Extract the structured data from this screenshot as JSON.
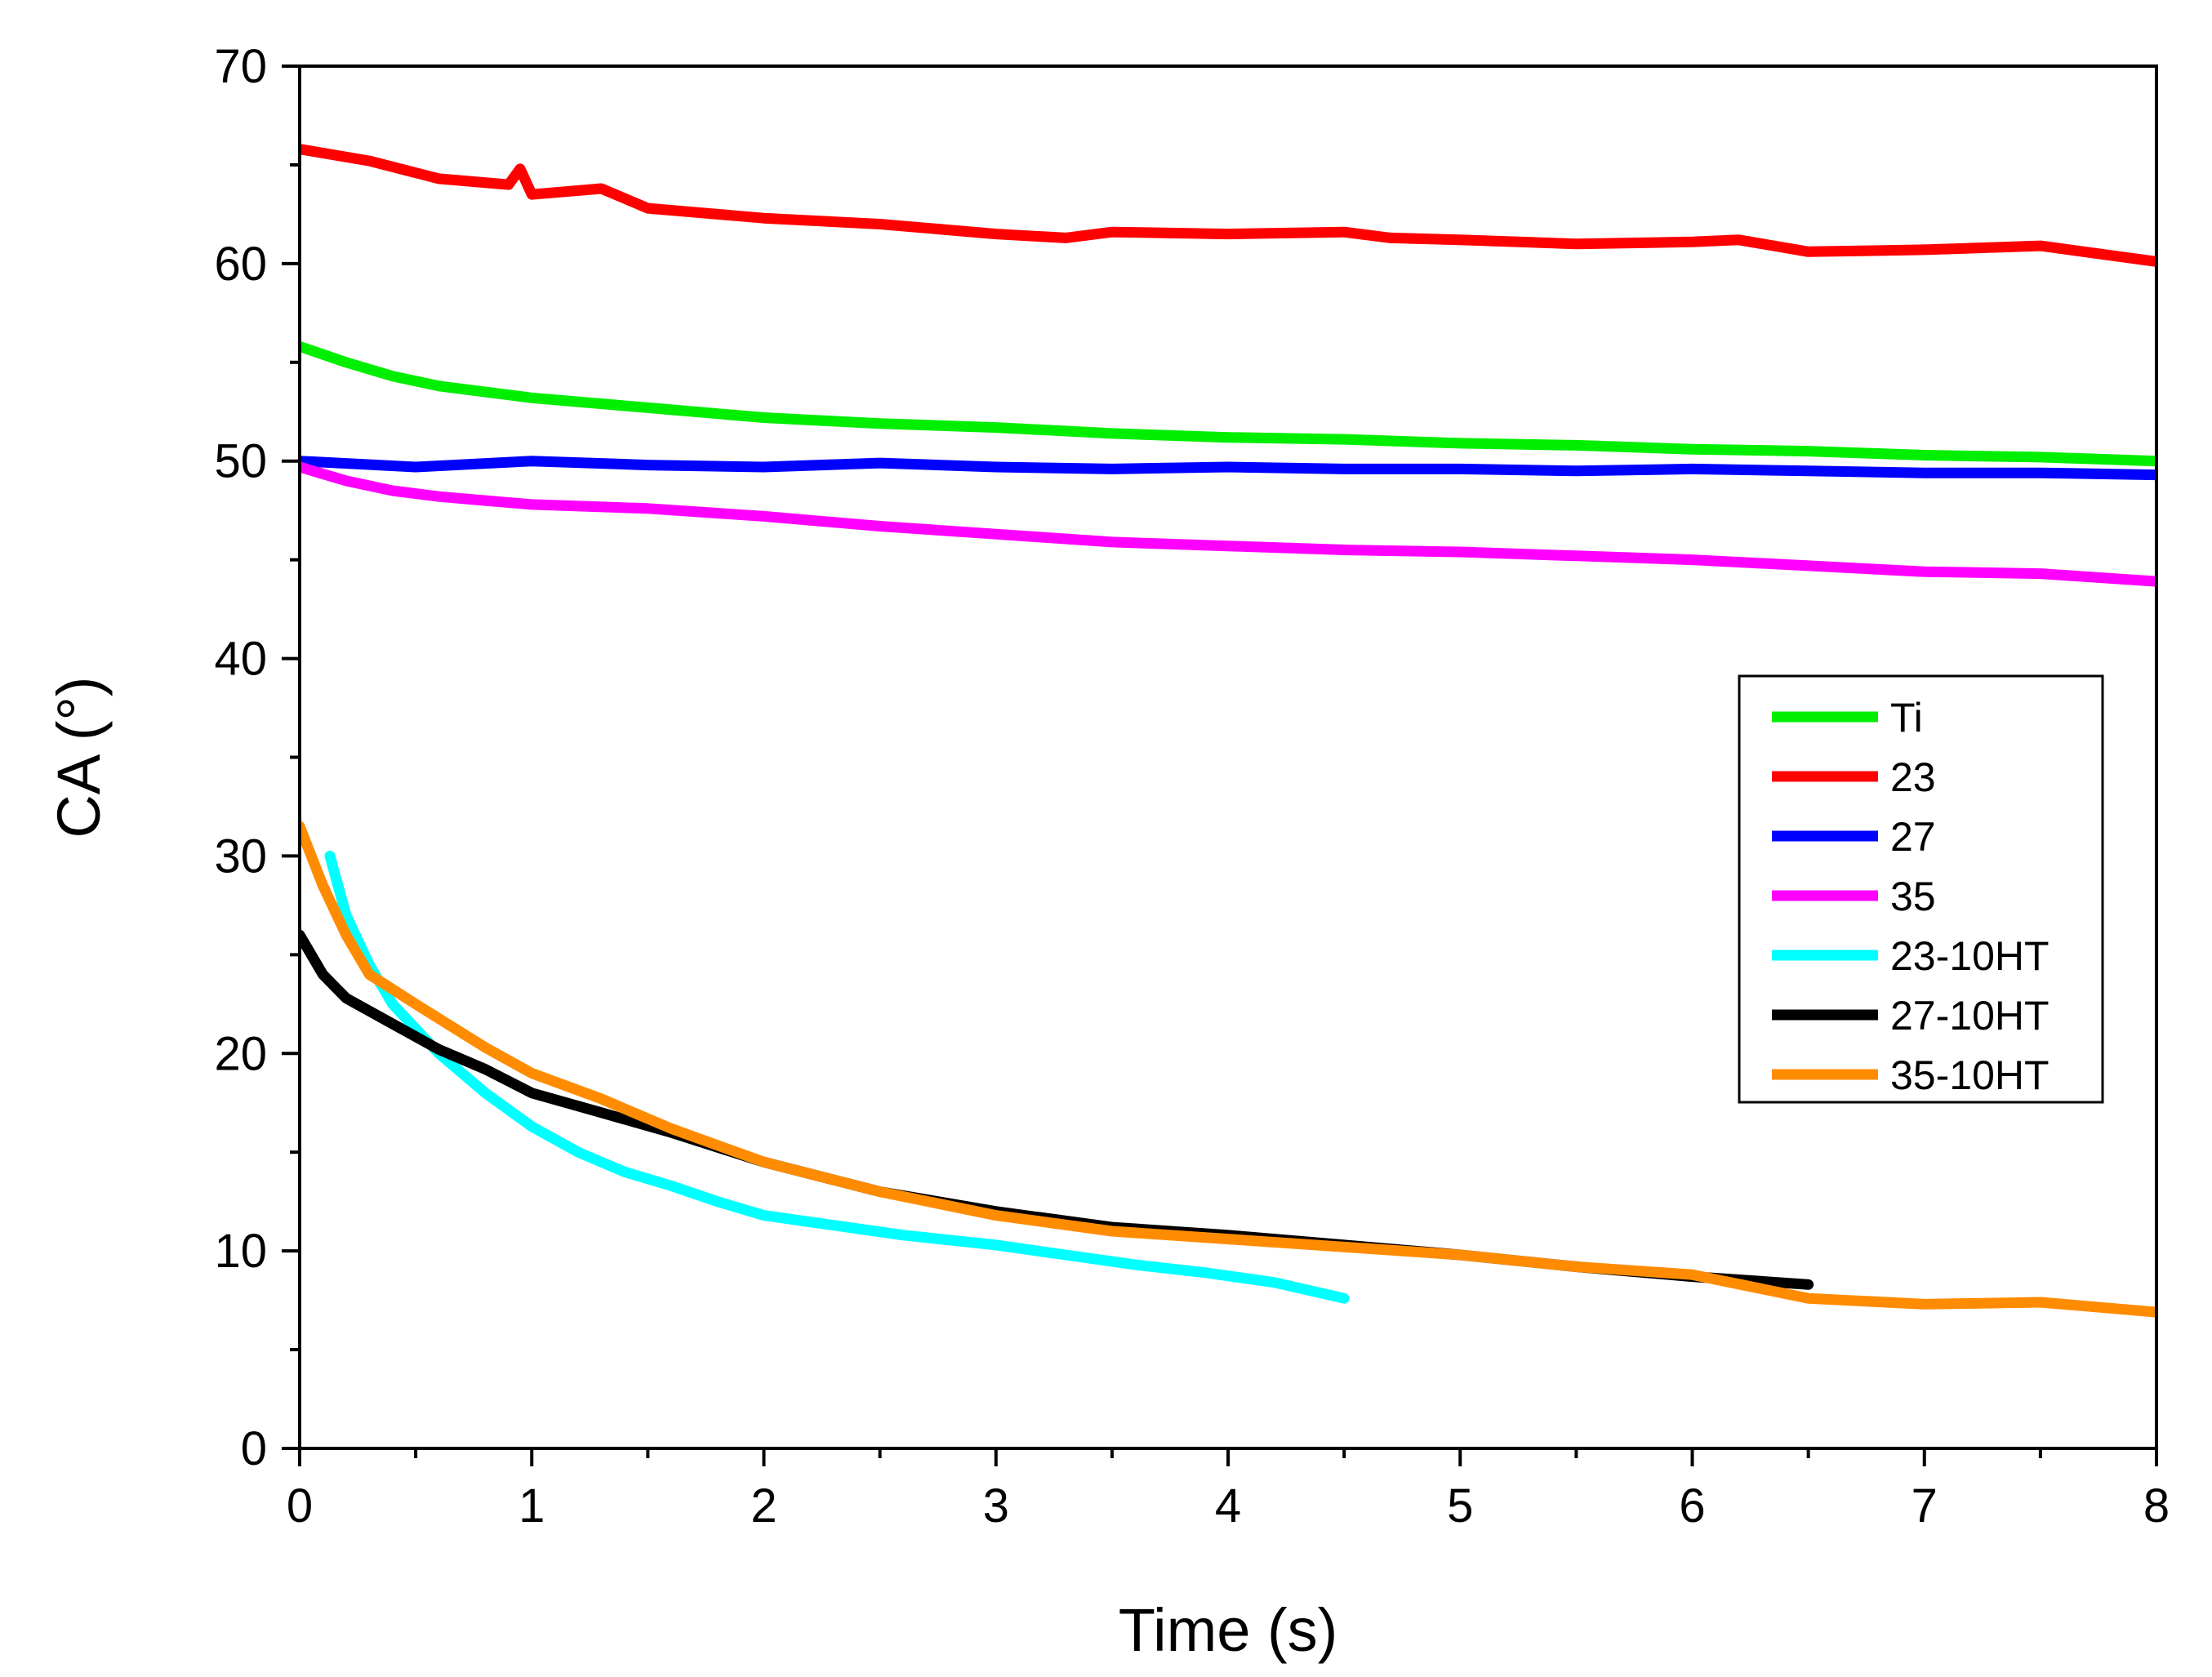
{
  "chart_data": {
    "type": "line",
    "title": "",
    "xlabel": "Time (s)",
    "ylabel": "CA (°)",
    "xlim": [
      0,
      8
    ],
    "ylim": [
      0,
      70
    ],
    "xticks": [
      0,
      1,
      2,
      3,
      4,
      5,
      6,
      7,
      8
    ],
    "yticks": [
      0,
      10,
      20,
      30,
      40,
      50,
      60,
      70
    ],
    "grid": false,
    "legend_position": "right-middle",
    "series": [
      {
        "name": "Ti",
        "color": "#00ee00",
        "x": [
          0,
          0.2,
          0.4,
          0.6,
          0.8,
          1.0,
          1.5,
          2.0,
          2.5,
          3.0,
          3.5,
          4.0,
          4.5,
          5.0,
          5.5,
          6.0,
          6.5,
          7.0,
          7.5,
          8.0
        ],
        "y": [
          55.8,
          55.0,
          54.3,
          53.8,
          53.5,
          53.2,
          52.7,
          52.2,
          51.9,
          51.7,
          51.4,
          51.2,
          51.1,
          50.9,
          50.8,
          50.6,
          50.5,
          50.3,
          50.2,
          50.0
        ]
      },
      {
        "name": "23",
        "color": "#ff0000",
        "x": [
          0,
          0.3,
          0.6,
          0.9,
          0.95,
          1.0,
          1.3,
          1.5,
          2.0,
          2.5,
          3.0,
          3.3,
          3.5,
          4.0,
          4.5,
          4.7,
          5.0,
          5.5,
          6.0,
          6.2,
          6.5,
          7.0,
          7.5,
          8.0
        ],
        "y": [
          65.8,
          65.2,
          64.3,
          64.0,
          64.8,
          63.5,
          63.8,
          62.8,
          62.3,
          62.0,
          61.5,
          61.3,
          61.6,
          61.5,
          61.6,
          61.3,
          61.2,
          61.0,
          61.1,
          61.2,
          60.6,
          60.7,
          60.9,
          60.1
        ]
      },
      {
        "name": "27",
        "color": "#0000ff",
        "x": [
          0,
          0.5,
          1.0,
          1.5,
          2.0,
          2.5,
          3.0,
          3.5,
          4.0,
          4.5,
          5.0,
          5.5,
          6.0,
          6.5,
          7.0,
          7.5,
          8.0
        ],
        "y": [
          50.0,
          49.7,
          50.0,
          49.8,
          49.7,
          49.9,
          49.7,
          49.6,
          49.7,
          49.6,
          49.6,
          49.5,
          49.6,
          49.5,
          49.4,
          49.4,
          49.3
        ]
      },
      {
        "name": "35",
        "color": "#ff00ff",
        "x": [
          0,
          0.2,
          0.4,
          0.6,
          0.8,
          1.0,
          1.5,
          2.0,
          2.5,
          3.0,
          3.5,
          4.0,
          4.5,
          5.0,
          5.5,
          6.0,
          6.5,
          7.0,
          7.5,
          8.0
        ],
        "y": [
          49.7,
          49.0,
          48.5,
          48.2,
          48.0,
          47.8,
          47.6,
          47.2,
          46.7,
          46.3,
          45.9,
          45.7,
          45.5,
          45.4,
          45.2,
          45.0,
          44.7,
          44.4,
          44.3,
          43.9
        ]
      },
      {
        "name": "23-10HT",
        "color": "#00ffff",
        "x": [
          0.13,
          0.2,
          0.3,
          0.4,
          0.6,
          0.8,
          1.0,
          1.2,
          1.4,
          1.6,
          1.8,
          2.0,
          2.3,
          2.6,
          3.0,
          3.3,
          3.6,
          3.9,
          4.2,
          4.5
        ],
        "y": [
          30.0,
          27.0,
          24.5,
          22.5,
          20.0,
          18.0,
          16.3,
          15.0,
          14.0,
          13.3,
          12.5,
          11.8,
          11.3,
          10.8,
          10.3,
          9.8,
          9.3,
          8.9,
          8.4,
          7.6
        ]
      },
      {
        "name": "27-10HT",
        "color": "#000000",
        "x": [
          0,
          0.1,
          0.2,
          0.4,
          0.6,
          0.8,
          1.0,
          1.3,
          1.6,
          2.0,
          2.5,
          3.0,
          3.5,
          4.0,
          4.5,
          5.0,
          5.5,
          6.0,
          6.5
        ],
        "y": [
          26.0,
          24.0,
          22.8,
          21.5,
          20.2,
          19.2,
          18.0,
          17.0,
          16.0,
          14.5,
          13.0,
          12.0,
          11.2,
          10.8,
          10.3,
          9.8,
          9.2,
          8.7,
          8.3
        ]
      },
      {
        "name": "35-10HT",
        "color": "#ff8c00",
        "x": [
          0,
          0.1,
          0.2,
          0.3,
          0.5,
          0.8,
          1.0,
          1.3,
          1.6,
          2.0,
          2.5,
          3.0,
          3.5,
          4.0,
          4.5,
          5.0,
          5.5,
          6.0,
          6.5,
          7.0,
          7.5,
          8.0
        ],
        "y": [
          31.5,
          28.5,
          26.0,
          24.0,
          22.5,
          20.3,
          19.0,
          17.7,
          16.2,
          14.5,
          13.0,
          11.8,
          11.0,
          10.6,
          10.2,
          9.8,
          9.2,
          8.8,
          7.6,
          7.3,
          7.4,
          6.9
        ]
      }
    ]
  }
}
